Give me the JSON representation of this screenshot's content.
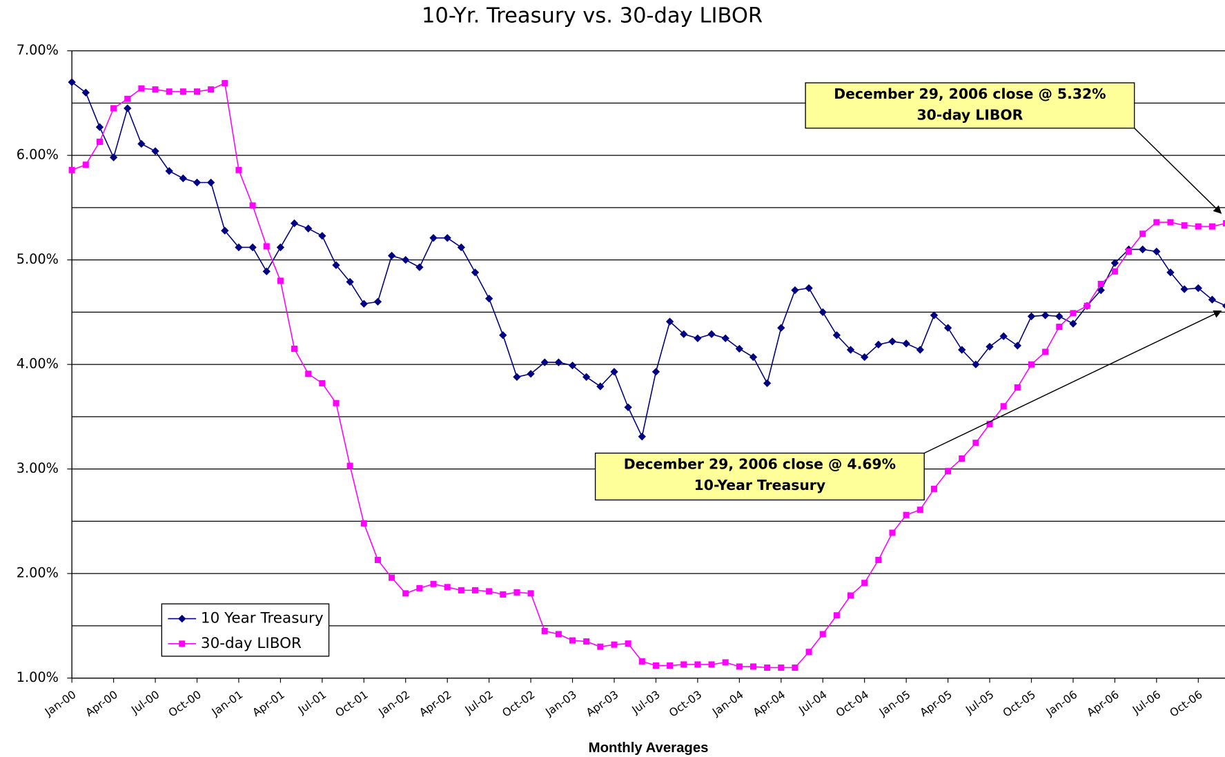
{
  "chart_data": {
    "type": "line",
    "title": "10-Yr. Treasury vs. 30-day LIBOR",
    "x_label": "Monthly Averages",
    "categories": [
      "Jan-00",
      null,
      null,
      "Apr-00",
      null,
      null,
      "Jul-00",
      null,
      null,
      "Oct-00",
      null,
      null,
      "Jan-01",
      null,
      null,
      "Apr-01",
      null,
      null,
      "Jul-01",
      null,
      null,
      "Oct-01",
      null,
      null,
      "Jan-02",
      null,
      null,
      "Apr-02",
      null,
      null,
      "Jul-02",
      null,
      null,
      "Oct-02",
      null,
      null,
      "Jan-03",
      null,
      null,
      "Apr-03",
      null,
      null,
      "Jul-03",
      null,
      null,
      "Oct-03",
      null,
      null,
      "Jan-04",
      null,
      null,
      "Apr-04",
      null,
      null,
      "Jul-04",
      null,
      null,
      "Oct-04",
      null,
      null,
      "Jan-05",
      null,
      null,
      "Apr-05",
      null,
      null,
      "Jul-05",
      null,
      null,
      "Oct-05",
      null,
      null,
      "Jan-06",
      null,
      null,
      "Apr-06",
      null,
      null,
      "Jul-06",
      null,
      null,
      "Oct-06",
      null,
      null
    ],
    "series": [
      {
        "name": "10 Year Treasury",
        "color": "#000080",
        "marker": "diamond",
        "values": [
          6.7,
          6.6,
          6.27,
          5.98,
          6.45,
          6.11,
          6.04,
          5.85,
          5.78,
          5.74,
          5.74,
          5.28,
          5.12,
          5.12,
          4.89,
          5.12,
          5.35,
          5.3,
          5.23,
          4.95,
          4.79,
          4.58,
          4.6,
          5.04,
          5.0,
          4.93,
          5.21,
          5.21,
          5.12,
          4.88,
          4.63,
          4.28,
          3.88,
          3.91,
          4.02,
          4.02,
          3.99,
          3.88,
          3.79,
          3.93,
          3.59,
          3.31,
          3.93,
          4.41,
          4.29,
          4.25,
          4.29,
          4.25,
          4.15,
          4.07,
          3.82,
          4.35,
          4.71,
          4.73,
          4.5,
          4.28,
          4.14,
          4.07,
          4.19,
          4.22,
          4.2,
          4.14,
          4.47,
          4.35,
          4.14,
          4.0,
          4.17,
          4.27,
          4.18,
          4.46,
          4.47,
          4.46,
          4.39,
          4.56,
          4.71,
          4.97,
          5.1,
          5.1,
          5.08,
          4.88,
          4.72,
          4.73,
          4.62,
          4.56
        ]
      },
      {
        "name": "30-day LIBOR",
        "color": "#ff00ff",
        "marker": "square",
        "values": [
          5.86,
          5.91,
          6.13,
          6.45,
          6.54,
          6.64,
          6.63,
          6.61,
          6.61,
          6.61,
          6.63,
          6.69,
          5.86,
          5.52,
          5.13,
          4.8,
          4.15,
          3.91,
          3.82,
          3.63,
          3.03,
          2.48,
          2.13,
          1.96,
          1.81,
          1.86,
          1.9,
          1.87,
          1.84,
          1.84,
          1.83,
          1.8,
          1.82,
          1.81,
          1.45,
          1.42,
          1.36,
          1.35,
          1.3,
          1.32,
          1.33,
          1.16,
          1.12,
          1.12,
          1.13,
          1.13,
          1.13,
          1.15,
          1.11,
          1.11,
          1.1,
          1.1,
          1.1,
          1.25,
          1.42,
          1.6,
          1.79,
          1.91,
          2.13,
          2.39,
          2.56,
          2.61,
          2.81,
          2.98,
          3.1,
          3.25,
          3.43,
          3.6,
          3.78,
          4.0,
          4.12,
          4.36,
          4.49,
          4.56,
          4.77,
          4.89,
          5.08,
          5.25,
          5.36,
          5.36,
          5.33,
          5.32,
          5.32,
          5.35
        ]
      }
    ],
    "ylim": [
      1,
      7
    ],
    "yticks": [
      {
        "value": 1,
        "label": "1.00%"
      },
      {
        "value": 2,
        "label": "2.00%"
      },
      {
        "value": 3,
        "label": "3.00%"
      },
      {
        "value": 4,
        "label": "4.00%"
      },
      {
        "value": 5,
        "label": "5.00%"
      },
      {
        "value": 6,
        "label": "6.00%"
      },
      {
        "value": 7,
        "label": "7.00%"
      }
    ],
    "minor_gridlines": [
      1.5,
      2.5,
      3.5,
      4.5,
      5.5,
      6.5
    ],
    "grid": true,
    "legend": "lower left",
    "annotations": [
      {
        "lines": [
          "December 29, 2006 close @  5.32%",
          "30-day LIBOR"
        ]
      },
      {
        "lines": [
          "December 29, 2006 close @ 4.69%",
          "10-Year Treasury"
        ]
      }
    ]
  }
}
